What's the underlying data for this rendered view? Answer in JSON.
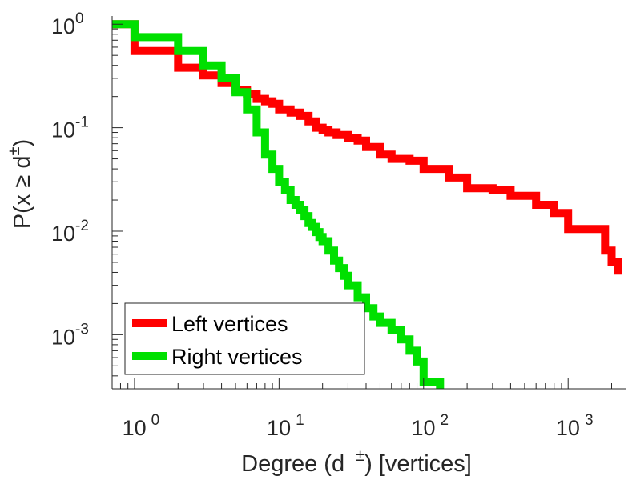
{
  "chart_data": {
    "type": "line",
    "xscale": "log",
    "yscale": "log",
    "xlim": [
      0.7,
      2500
    ],
    "ylim": [
      0.0003,
      1.2
    ],
    "xticks": [
      {
        "base": "10",
        "exp": "0"
      },
      {
        "base": "10",
        "exp": "1"
      },
      {
        "base": "10",
        "exp": "2"
      },
      {
        "base": "10",
        "exp": "3"
      }
    ],
    "yticks": [
      {
        "base": "10",
        "exp": "0"
      },
      {
        "base": "10",
        "exp": "-1"
      },
      {
        "base": "10",
        "exp": "-2"
      },
      {
        "base": "10",
        "exp": "-3"
      }
    ],
    "xlabel": {
      "prefix": "Degree (d",
      "sup": "±",
      "suffix": ") [vertices]"
    },
    "ylabel": {
      "prefix": "P(x ≥ d",
      "sup": "±",
      "suffix": ")"
    },
    "grid": false,
    "legend_position": "bottom-left",
    "series": [
      {
        "name": "Left vertices",
        "color": "#ff0000",
        "x": [
          0.7,
          1,
          2,
          3,
          4,
          5,
          6,
          7,
          8,
          9,
          10,
          12,
          14,
          16,
          18,
          20,
          22,
          25,
          30,
          35,
          40,
          50,
          60,
          80,
          100,
          150,
          200,
          300,
          400,
          500,
          600,
          700,
          800,
          1000,
          1200,
          1500,
          1800,
          2000,
          2200
        ],
        "y": [
          1.0,
          0.55,
          0.38,
          0.32,
          0.27,
          0.23,
          0.21,
          0.19,
          0.18,
          0.17,
          0.15,
          0.14,
          0.13,
          0.115,
          0.1,
          0.095,
          0.09,
          0.085,
          0.08,
          0.075,
          0.065,
          0.055,
          0.05,
          0.048,
          0.04,
          0.033,
          0.026,
          0.025,
          0.022,
          0.022,
          0.018,
          0.018,
          0.015,
          0.0105,
          0.0105,
          0.0105,
          0.0065,
          0.005,
          0.0038
        ]
      },
      {
        "name": "Right vertices",
        "color": "#00e000",
        "x": [
          0.7,
          1,
          2,
          3,
          4,
          5,
          6,
          7,
          8,
          9,
          10,
          11,
          12,
          13,
          14,
          15,
          16,
          17,
          18,
          19,
          20,
          22,
          24,
          26,
          28,
          30,
          35,
          40,
          45,
          50,
          60,
          70,
          80,
          90,
          100,
          130
        ],
        "y": [
          1.0,
          0.75,
          0.55,
          0.4,
          0.3,
          0.22,
          0.15,
          0.09,
          0.055,
          0.04,
          0.03,
          0.025,
          0.02,
          0.018,
          0.016,
          0.014,
          0.012,
          0.011,
          0.0098,
          0.0088,
          0.008,
          0.0065,
          0.0052,
          0.0044,
          0.0037,
          0.003,
          0.0023,
          0.0018,
          0.0015,
          0.0013,
          0.0011,
          0.0009,
          0.0007,
          0.00055,
          0.00035,
          0.0003
        ]
      }
    ]
  }
}
